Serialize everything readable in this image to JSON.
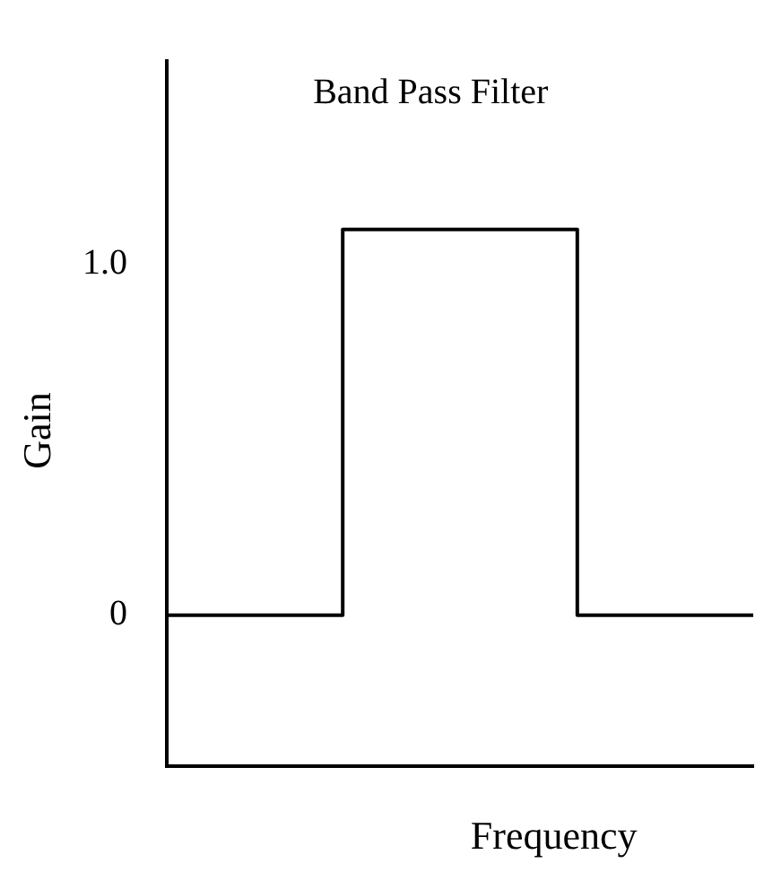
{
  "chart_data": {
    "type": "step",
    "title": "Band Pass Filter",
    "xlabel": "Frequency",
    "ylabel": "Gain",
    "categories": [
      null,
      null,
      null,
      null,
      null,
      null
    ],
    "values": [
      0,
      0,
      1.1,
      1.1,
      0,
      0
    ],
    "color": "#000000",
    "marker": "none",
    "ylim": [
      -0.43,
      1.58
    ],
    "yticks": [
      {
        "value": 0,
        "label": "0"
      },
      {
        "value": 1,
        "label": "1.0"
      }
    ],
    "tick_labels": "y"
  }
}
